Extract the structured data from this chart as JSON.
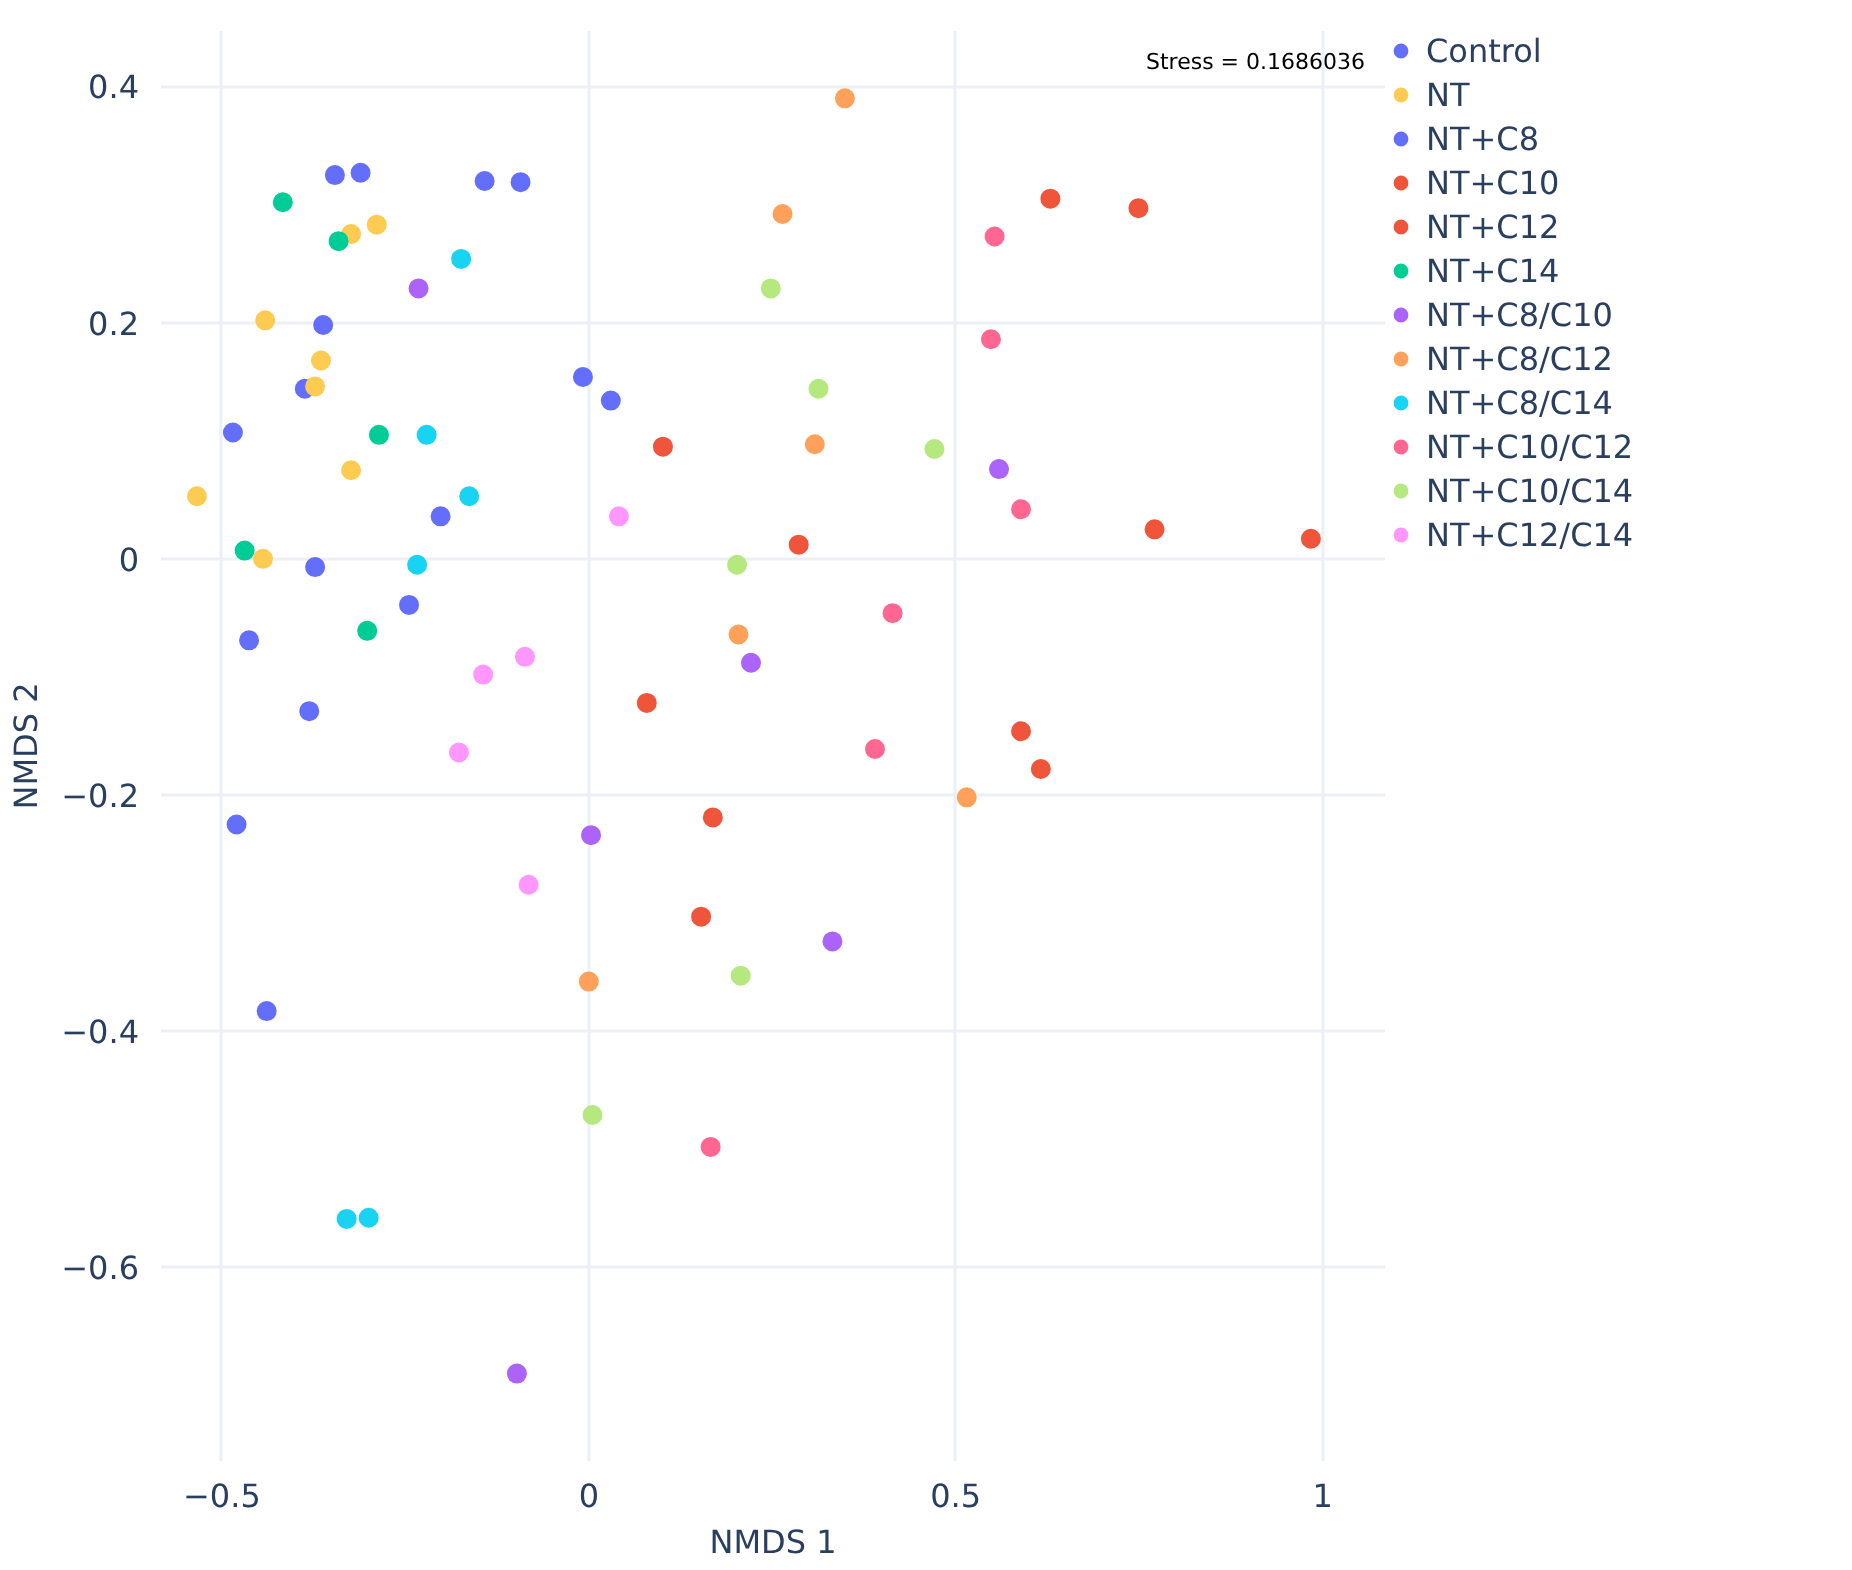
{
  "chart_data": {
    "type": "scatter",
    "xlabel": "NMDS 1",
    "ylabel": "NMDS 2",
    "xlim": [
      -0.583,
      1.085
    ],
    "ylim": [
      -0.764,
      0.447
    ],
    "xticks": [
      {
        "value": -0.5,
        "label": "−0.5"
      },
      0,
      0.5,
      1
    ],
    "yticks": [
      {
        "value": -0.6,
        "label": "−0.6"
      },
      {
        "value": -0.4,
        "label": "−0.4"
      },
      {
        "value": -0.2,
        "label": "−0.2"
      },
      0,
      0.2,
      0.4
    ],
    "grid": true,
    "legend": "top right",
    "marker": "circle",
    "annotations": [
      "Stress = 0.1686036"
    ],
    "series": [
      {
        "name": "Control",
        "color": "#636efa",
        "x": [
          -0.346,
          -0.311,
          -0.142,
          -0.093,
          -0.362,
          -0.387,
          -0.485,
          -0.008
        ],
        "values": [
          0.325,
          0.327,
          0.32,
          0.319,
          0.198,
          0.144,
          0.107,
          0.154
        ]
      },
      {
        "name": "NT",
        "color": "#fecb52",
        "x": [
          -0.289,
          -0.324,
          -0.441,
          -0.365,
          -0.373,
          -0.534,
          -0.324,
          -0.444
        ],
        "values": [
          0.283,
          0.275,
          0.202,
          0.168,
          0.146,
          0.053,
          0.075,
          0.0
        ]
      },
      {
        "name": "NT+C8",
        "color": "#636efa",
        "x": [
          0.03,
          -0.373,
          -0.245,
          -0.202,
          -0.463,
          -0.381,
          -0.48,
          -0.439
        ],
        "values": [
          0.134,
          -0.007,
          -0.039,
          0.036,
          -0.069,
          -0.129,
          -0.225,
          -0.383
        ]
      },
      {
        "name": "NT+C10",
        "color": "#ef553b",
        "x": [
          0.629,
          0.749,
          0.101,
          0.286,
          0.771,
          0.984
        ],
        "values": [
          0.305,
          0.297,
          0.095,
          0.012,
          0.025,
          0.017
        ]
      },
      {
        "name": "NT+C12",
        "color": "#ef553b",
        "x": [
          0.079,
          0.589,
          0.616,
          0.169,
          0.153
        ],
        "values": [
          -0.122,
          -0.146,
          -0.178,
          -0.219,
          -0.303
        ]
      },
      {
        "name": "NT+C14",
        "color": "#00cc96",
        "x": [
          -0.417,
          -0.341,
          -0.286,
          -0.469,
          -0.302
        ],
        "values": [
          0.302,
          0.269,
          0.105,
          0.007,
          -0.061
        ]
      },
      {
        "name": "NT+C8/C10",
        "color": "#ab63fa",
        "x": [
          -0.232,
          0.559,
          0.221,
          0.003,
          0.332,
          -0.098
        ],
        "values": [
          0.229,
          0.076,
          -0.088,
          -0.234,
          -0.324,
          -0.69
        ]
      },
      {
        "name": "NT+C8/C12",
        "color": "#ffa15a",
        "x": [
          0.349,
          0.264,
          0.308,
          0.204,
          0.515,
          0.0
        ],
        "values": [
          0.39,
          0.292,
          0.097,
          -0.064,
          -0.202,
          -0.358
        ]
      },
      {
        "name": "NT+C8/C14",
        "color": "#19d3f3",
        "x": [
          -0.174,
          -0.221,
          -0.163,
          -0.234,
          -0.33,
          -0.3
        ],
        "values": [
          0.254,
          0.105,
          0.053,
          -0.005,
          -0.559,
          -0.558
        ]
      },
      {
        "name": "NT+C10/C12",
        "color": "#ff6692",
        "x": [
          0.553,
          0.548,
          0.589,
          0.414,
          0.39,
          0.166
        ],
        "values": [
          0.273,
          0.186,
          0.042,
          -0.046,
          -0.161,
          -0.498
        ]
      },
      {
        "name": "NT+C10/C14",
        "color": "#b6e880",
        "x": [
          0.248,
          0.313,
          0.471,
          0.202,
          0.207,
          0.005
        ],
        "values": [
          0.229,
          0.144,
          0.093,
          -0.005,
          -0.353,
          -0.471
        ]
      },
      {
        "name": "NT+C12/C14",
        "color": "#ff97ff",
        "x": [
          0.041,
          -0.087,
          -0.144,
          -0.177,
          -0.082
        ],
        "values": [
          0.036,
          -0.083,
          -0.098,
          -0.164,
          -0.276
        ]
      }
    ]
  }
}
